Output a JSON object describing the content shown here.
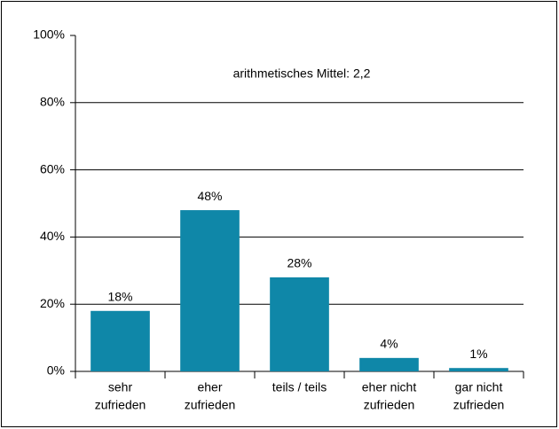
{
  "chart_data": {
    "type": "bar",
    "annotation": "arithmetisches Mittel: 2,2",
    "categories": [
      [
        "sehr",
        "zufrieden"
      ],
      [
        "eher",
        "zufrieden"
      ],
      [
        "teils / teils"
      ],
      [
        "eher nicht",
        "zufrieden"
      ],
      [
        "gar nicht",
        "zufrieden"
      ]
    ],
    "values": [
      18,
      48,
      28,
      4,
      1
    ],
    "value_labels": [
      "18%",
      "48%",
      "28%",
      "4%",
      "1%"
    ],
    "color": "#0f87a8",
    "ylim": [
      0,
      100
    ],
    "yticks": [
      {
        "value": 0,
        "label": "0%"
      },
      {
        "value": 20,
        "label": "20%"
      },
      {
        "value": 40,
        "label": "40%"
      },
      {
        "value": 60,
        "label": "60%"
      },
      {
        "value": 80,
        "label": "80%"
      },
      {
        "value": 100,
        "label": "100%"
      }
    ],
    "grid": true
  }
}
